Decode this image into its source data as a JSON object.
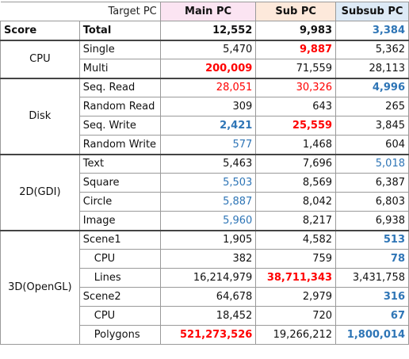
{
  "header": {
    "target_label": "Target PC",
    "columns": [
      "Main PC",
      "Sub PC",
      "Subsub PC"
    ]
  },
  "score": {
    "label": "Score",
    "total_label": "Total",
    "values": [
      "12,552",
      "9,983",
      "3,384"
    ]
  },
  "cpu": {
    "group": "CPU",
    "rows": [
      {
        "label": "Single",
        "values": [
          "5,470",
          "9,887",
          "5,362"
        ]
      },
      {
        "label": "Multi",
        "values": [
          "200,009",
          "71,559",
          "28,113"
        ]
      }
    ]
  },
  "disk": {
    "group": "Disk",
    "rows": [
      {
        "label": "Seq. Read",
        "values": [
          "28,051",
          "30,326",
          "4,996"
        ]
      },
      {
        "label": "Random Read",
        "values": [
          "309",
          "643",
          "265"
        ]
      },
      {
        "label": "Seq. Write",
        "values": [
          "2,421",
          "25,559",
          "3,845"
        ]
      },
      {
        "label": "Random Write",
        "values": [
          "577",
          "1,468",
          "604"
        ]
      }
    ]
  },
  "gdi": {
    "group": "2D(GDI)",
    "rows": [
      {
        "label": "Text",
        "values": [
          "5,463",
          "7,696",
          "5,018"
        ]
      },
      {
        "label": "Square",
        "values": [
          "5,503",
          "8,569",
          "6,387"
        ]
      },
      {
        "label": "Circle",
        "values": [
          "5,887",
          "8,042",
          "6,803"
        ]
      },
      {
        "label": "Image",
        "values": [
          "5,960",
          "8,217",
          "6,938"
        ]
      }
    ]
  },
  "opengl": {
    "group": "3D(OpenGL)",
    "rows": [
      {
        "label": "Scene1",
        "values": [
          "1,905",
          "4,582",
          "513"
        ]
      },
      {
        "label": "CPU",
        "values": [
          "382",
          "759",
          "78"
        ]
      },
      {
        "label": "Lines",
        "values": [
          "16,214,979",
          "38,711,343",
          "3,431,758"
        ]
      },
      {
        "label": "Scene2",
        "values": [
          "64,678",
          "2,979",
          "316"
        ]
      },
      {
        "label": "CPU",
        "values": [
          "18,452",
          "720",
          "67"
        ]
      },
      {
        "label": "Polygons",
        "values": [
          "521,273,526",
          "19,266,212",
          "1,800,014"
        ]
      }
    ]
  },
  "colors": {
    "highlight_max": "#ff0000",
    "highlight_min": "#2e75b6",
    "main_header_bg": "#fbe4f2",
    "sub_header_bg": "#fde9db",
    "subsub_header_bg": "#ddeaf6"
  }
}
